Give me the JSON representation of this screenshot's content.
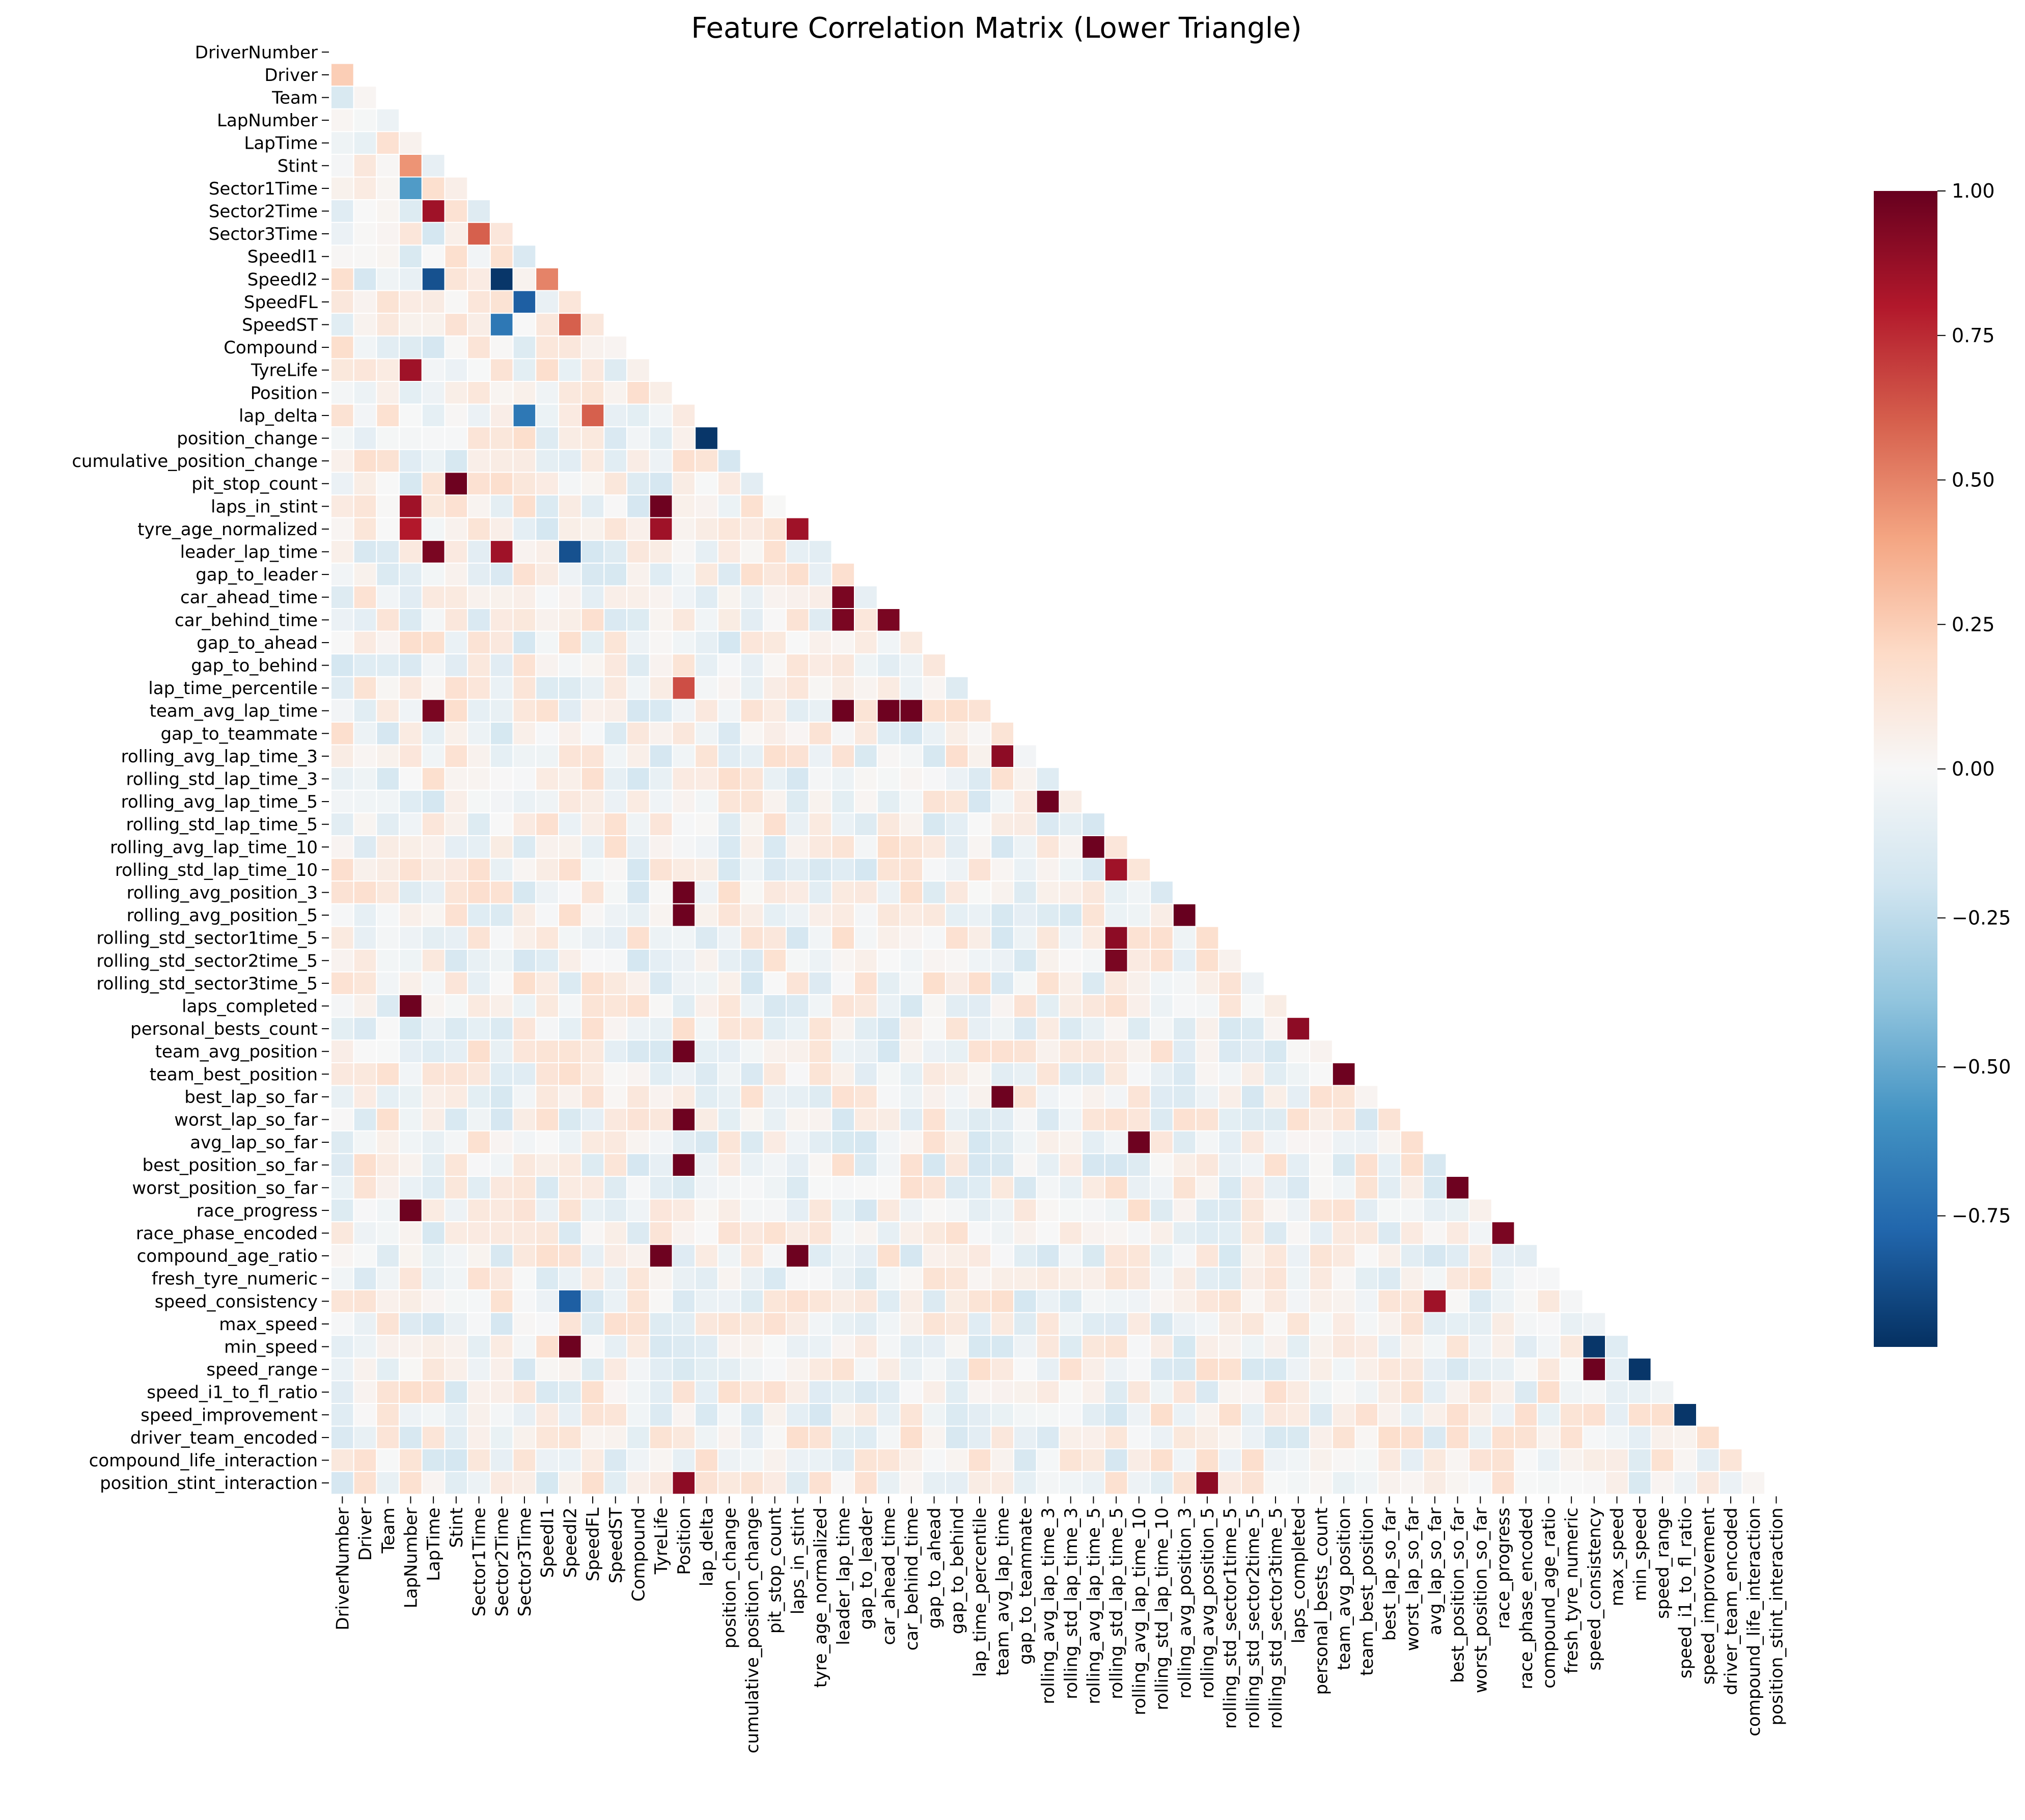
{
  "chart_data": {
    "type": "heatmap",
    "title": "Feature Correlation Matrix (Lower Triangle)",
    "mask": "upper-triangle-and-diagonal",
    "features": [
      "DriverNumber",
      "Driver",
      "Team",
      "LapNumber",
      "LapTime",
      "Stint",
      "Sector1Time",
      "Sector2Time",
      "Sector3Time",
      "SpeedI1",
      "SpeedI2",
      "SpeedFL",
      "SpeedST",
      "Compound",
      "TyreLife",
      "Position",
      "lap_delta",
      "position_change",
      "cumulative_position_change",
      "pit_stop_count",
      "laps_in_stint",
      "tyre_age_normalized",
      "leader_lap_time",
      "gap_to_leader",
      "car_ahead_time",
      "car_behind_time",
      "gap_to_ahead",
      "gap_to_behind",
      "lap_time_percentile",
      "team_avg_lap_time",
      "gap_to_teammate",
      "rolling_avg_lap_time_3",
      "rolling_std_lap_time_3",
      "rolling_avg_lap_time_5",
      "rolling_std_lap_time_5",
      "rolling_avg_lap_time_10",
      "rolling_std_lap_time_10",
      "rolling_avg_position_3",
      "rolling_avg_position_5",
      "rolling_std_sector1time_5",
      "rolling_std_sector2time_5",
      "rolling_std_sector3time_5",
      "laps_completed",
      "personal_bests_count",
      "team_avg_position",
      "team_best_position",
      "best_lap_so_far",
      "worst_lap_so_far",
      "avg_lap_so_far",
      "best_position_so_far",
      "worst_position_so_far",
      "race_progress",
      "race_phase_encoded",
      "compound_age_ratio",
      "fresh_tyre_numeric",
      "speed_consistency",
      "max_speed",
      "min_speed",
      "speed_range",
      "speed_i1_to_fl_ratio",
      "speed_improvement",
      "driver_team_encoded",
      "compound_life_interaction",
      "position_stint_interaction"
    ],
    "value_range": [
      -0.97,
      1.0
    ],
    "colormap": "RdBu_r",
    "colorbar_ticks": [
      "1.00",
      "0.75",
      "0.50",
      "0.25",
      "0.00",
      "−0.25",
      "−0.50",
      "−0.75"
    ],
    "colorbar_tick_values": [
      1.0,
      0.75,
      0.5,
      0.25,
      0.0,
      -0.25,
      -0.5,
      -0.75
    ],
    "colormap_stops": [
      "#053061",
      "#2166ac",
      "#4393c3",
      "#92c5de",
      "#d1e5f0",
      "#f7f7f7",
      "#fddbc7",
      "#f4a582",
      "#d6604d",
      "#b2182b",
      "#67001f"
    ],
    "grid_line_color": "#ffffff",
    "strong_correlations": [
      [
        "Driver",
        "DriverNumber",
        0.25
      ],
      [
        "Sector2Time",
        "LapTime",
        0.85
      ],
      [
        "Stint",
        "LapNumber",
        0.45
      ],
      [
        "Sector1Time",
        "LapNumber",
        -0.55
      ],
      [
        "Sector3Time",
        "Sector1Time",
        0.6
      ],
      [
        "SpeedI2",
        "LapTime",
        -0.85
      ],
      [
        "SpeedI2",
        "Sector2Time",
        -0.95
      ],
      [
        "SpeedI2",
        "SpeedI1",
        0.5
      ],
      [
        "SpeedFL",
        "Sector3Time",
        -0.8
      ],
      [
        "SpeedST",
        "SpeedI2",
        0.6
      ],
      [
        "SpeedST",
        "Sector2Time",
        -0.7
      ],
      [
        "TyreLife",
        "LapNumber",
        0.85
      ],
      [
        "lap_delta",
        "Sector3Time",
        -0.7
      ],
      [
        "lap_delta",
        "SpeedFL",
        0.6
      ],
      [
        "position_change",
        "lap_delta",
        -0.95
      ],
      [
        "pit_stop_count",
        "Stint",
        0.98
      ],
      [
        "laps_in_stint",
        "LapNumber",
        0.85
      ],
      [
        "laps_in_stint",
        "TyreLife",
        0.98
      ],
      [
        "tyre_age_normalized",
        "LapNumber",
        0.8
      ],
      [
        "tyre_age_normalized",
        "TyreLife",
        0.85
      ],
      [
        "tyre_age_normalized",
        "laps_in_stint",
        0.85
      ],
      [
        "leader_lap_time",
        "LapTime",
        0.95
      ],
      [
        "leader_lap_time",
        "Sector2Time",
        0.85
      ],
      [
        "leader_lap_time",
        "SpeedI2",
        -0.85
      ],
      [
        "car_ahead_time",
        "leader_lap_time",
        0.95
      ],
      [
        "car_behind_time",
        "leader_lap_time",
        0.95
      ],
      [
        "car_behind_time",
        "car_ahead_time",
        0.95
      ],
      [
        "lap_time_percentile",
        "Position",
        0.65
      ],
      [
        "team_avg_lap_time",
        "LapTime",
        0.95
      ],
      [
        "team_avg_lap_time",
        "leader_lap_time",
        0.98
      ],
      [
        "team_avg_lap_time",
        "car_ahead_time",
        0.98
      ],
      [
        "team_avg_lap_time",
        "car_behind_time",
        0.98
      ],
      [
        "rolling_avg_lap_time_3",
        "team_avg_lap_time",
        0.9
      ],
      [
        "rolling_avg_lap_time_5",
        "rolling_avg_lap_time_3",
        0.98
      ],
      [
        "rolling_avg_lap_time_10",
        "rolling_avg_lap_time_5",
        0.98
      ],
      [
        "rolling_std_lap_time_10",
        "rolling_std_lap_time_5",
        0.85
      ],
      [
        "rolling_avg_position_3",
        "Position",
        0.98
      ],
      [
        "rolling_avg_position_5",
        "Position",
        0.98
      ],
      [
        "rolling_avg_position_5",
        "rolling_avg_position_3",
        1.0
      ],
      [
        "rolling_std_sector1time_5",
        "rolling_std_lap_time_5",
        0.9
      ],
      [
        "rolling_std_sector2time_5",
        "rolling_std_lap_time_5",
        0.95
      ],
      [
        "laps_completed",
        "LapNumber",
        0.98
      ],
      [
        "personal_bests_count",
        "laps_completed",
        0.9
      ],
      [
        "team_avg_position",
        "Position",
        0.98
      ],
      [
        "team_best_position",
        "team_avg_position",
        0.98
      ],
      [
        "best_lap_so_far",
        "team_avg_lap_time",
        0.98
      ],
      [
        "worst_lap_so_far",
        "Position",
        0.98
      ],
      [
        "avg_lap_so_far",
        "rolling_avg_lap_time_10",
        0.98
      ],
      [
        "best_position_so_far",
        "Position",
        0.98
      ],
      [
        "worst_position_so_far",
        "best_position_so_far",
        0.98
      ],
      [
        "race_progress",
        "LapNumber",
        0.98
      ],
      [
        "race_phase_encoded",
        "race_progress",
        0.95
      ],
      [
        "compound_age_ratio",
        "TyreLife",
        0.98
      ],
      [
        "compound_age_ratio",
        "laps_in_stint",
        0.98
      ],
      [
        "speed_consistency",
        "SpeedI2",
        -0.8
      ],
      [
        "speed_consistency",
        "avg_lap_so_far",
        0.85
      ],
      [
        "min_speed",
        "SpeedI2",
        0.98
      ],
      [
        "min_speed",
        "speed_consistency",
        -0.95
      ],
      [
        "speed_range",
        "min_speed",
        -0.95
      ],
      [
        "speed_range",
        "speed_consistency",
        0.98
      ],
      [
        "speed_improvement",
        "speed_i1_to_fl_ratio",
        -0.95
      ],
      [
        "position_stint_interaction",
        "Position",
        0.9
      ],
      [
        "position_stint_interaction",
        "rolling_avg_position_5",
        0.9
      ]
    ]
  }
}
